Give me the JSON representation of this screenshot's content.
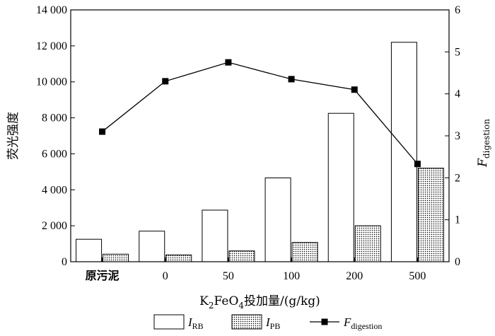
{
  "chart_data": {
    "type": "bar",
    "categories": [
      "原污泥",
      "0",
      "50",
      "100",
      "200",
      "500"
    ],
    "series": [
      {
        "name": "I_RB",
        "kind": "bar",
        "axis": "left",
        "fill": "#ffffff",
        "pattern": "none",
        "values": [
          1250,
          1700,
          2870,
          4660,
          8250,
          12200
        ]
      },
      {
        "name": "I_PB",
        "kind": "bar",
        "axis": "left",
        "fill": "#ffffff",
        "pattern": "dots",
        "values": [
          420,
          380,
          600,
          1070,
          2000,
          5200
        ]
      },
      {
        "name": "F_digestion",
        "kind": "line",
        "axis": "right",
        "color": "#000000",
        "marker": "square",
        "values": [
          3.1,
          4.3,
          4.75,
          4.35,
          4.1,
          2.33
        ]
      }
    ],
    "left_axis": {
      "label": "荧光强度",
      "ylim": [
        0,
        14000
      ],
      "ticks": [
        0,
        2000,
        4000,
        6000,
        8000,
        10000,
        12000,
        14000
      ],
      "tick_labels": [
        "0",
        "2 000",
        "4 000",
        "6 000",
        "8 000",
        "10 000",
        "12 000",
        "14 000"
      ]
    },
    "right_axis": {
      "label_main": "F",
      "label_sub": "digestion",
      "ylim": [
        0,
        6
      ],
      "ticks": [
        0,
        1,
        2,
        3,
        4,
        5,
        6
      ],
      "tick_labels": [
        "0",
        "1",
        "2",
        "3",
        "4",
        "5",
        "6"
      ]
    },
    "x_axis": {
      "label_parts": [
        "K",
        "2",
        "FeO",
        "4",
        "投加量/(g/kg)"
      ]
    },
    "legend": {
      "placement": "bottom",
      "items": [
        {
          "main": "I",
          "sub": "RB",
          "symbol": "box"
        },
        {
          "main": "I",
          "sub": "PB",
          "symbol": "dotted-box"
        },
        {
          "main": "F",
          "sub": "digestion",
          "symbol": "line-marker"
        }
      ]
    }
  }
}
